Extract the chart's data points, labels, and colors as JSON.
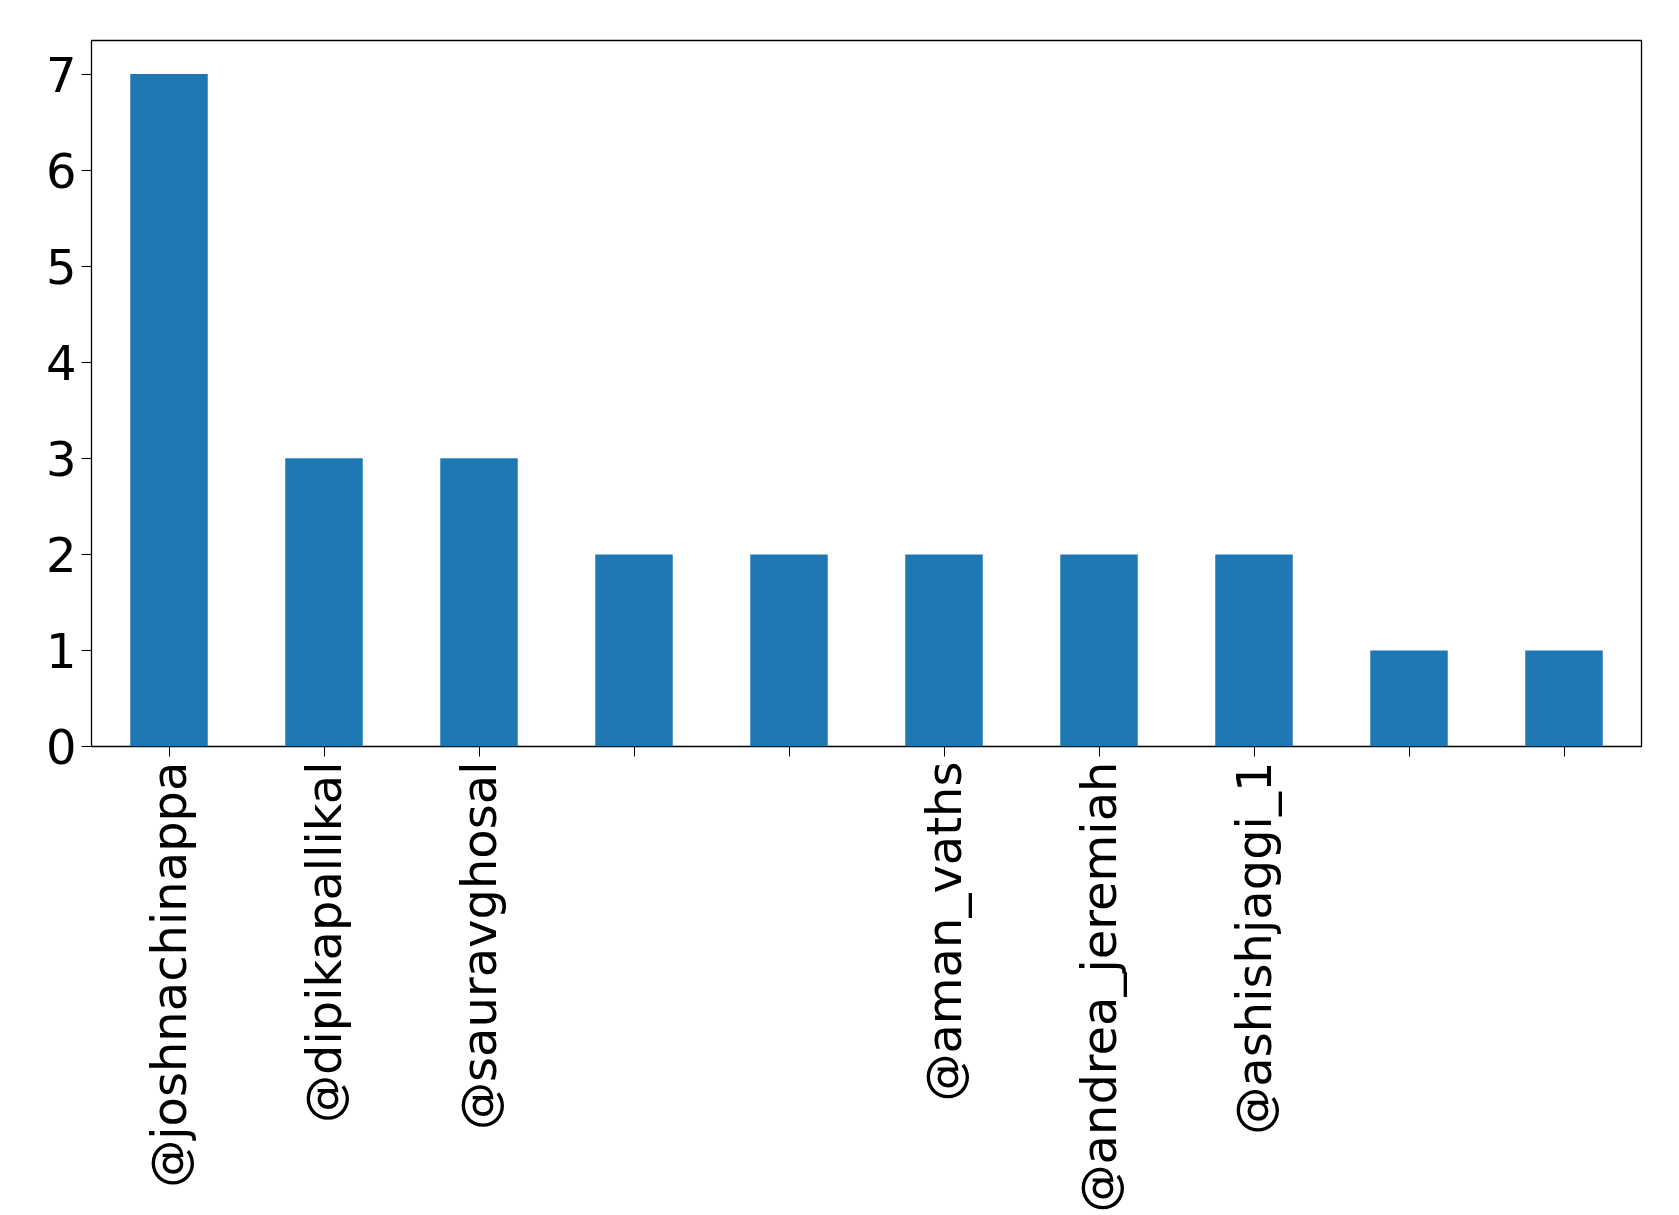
{
  "chart_data": {
    "type": "bar",
    "categories": [
      "@joshnachinappa",
      "@dipikapallikal",
      "@sauravghosal",
      null,
      null,
      "@aman_vaths",
      "@andrea_jeremiah",
      "@ashishjaggi_1",
      null,
      null
    ],
    "values": [
      7,
      3,
      3,
      2,
      2,
      2,
      2,
      2,
      1,
      1
    ],
    "color": "#1f77b4",
    "ylim": [
      0,
      7.35
    ],
    "yticks": [
      0,
      1,
      2,
      3,
      4,
      5,
      6,
      7
    ],
    "grid": false
  }
}
